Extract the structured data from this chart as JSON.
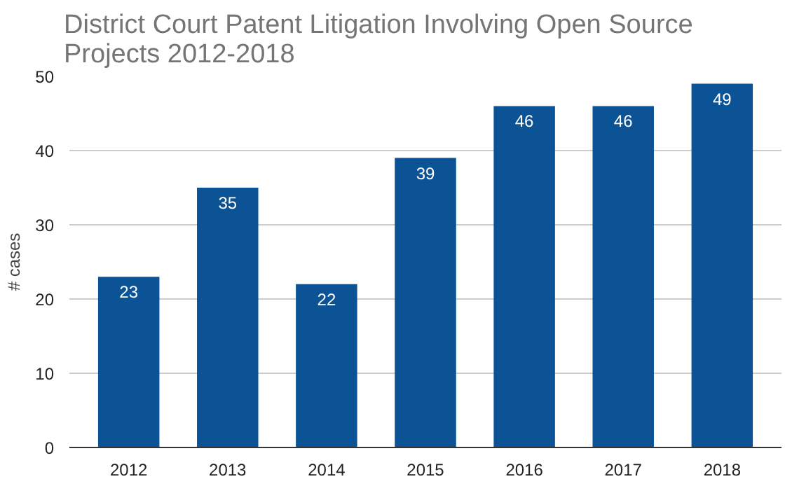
{
  "chart_data": {
    "type": "bar",
    "title": "District Court Patent Litigation Involving Open Source\nProjects 2012-2018",
    "ylabel": "# cases",
    "categories": [
      "2012",
      "2013",
      "2014",
      "2015",
      "2016",
      "2017",
      "2018"
    ],
    "values": [
      23,
      35,
      22,
      39,
      46,
      46,
      49
    ],
    "color": "#0b5394",
    "ylim": [
      0,
      50
    ],
    "yticks": [
      0,
      10,
      20,
      30,
      40,
      50
    ],
    "grid": "y",
    "data_labels": true
  }
}
